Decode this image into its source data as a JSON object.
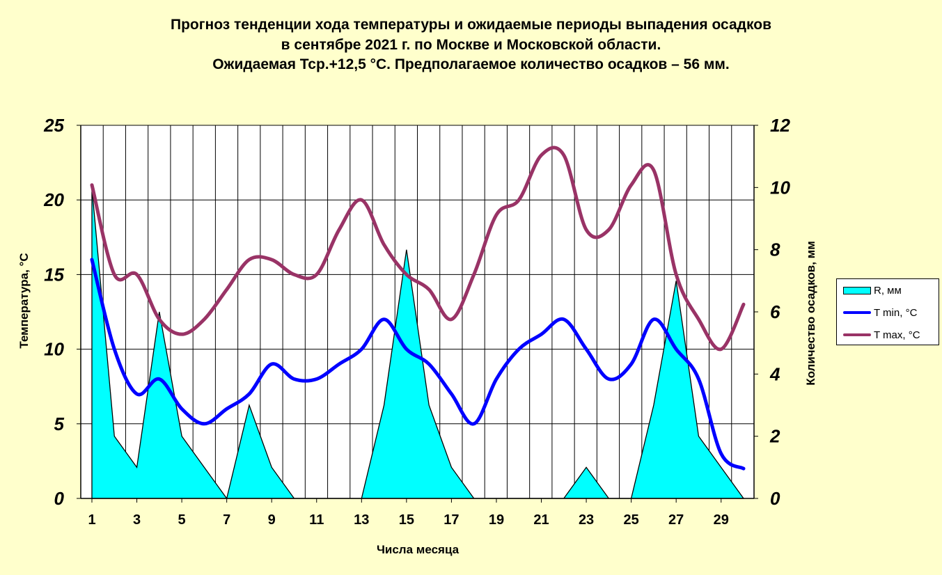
{
  "title_lines": [
    "Прогноз тенденции хода температуры и ожидаемые периоды выпадения осадков",
    "в сентябре 2021 г. по Москве и Московской области.",
    "Ожидаемая Тср.+12,5 °С. Предполагаемое количество осадков – 56 мм."
  ],
  "chart_data": {
    "type": "line",
    "x": [
      1,
      2,
      3,
      4,
      5,
      6,
      7,
      8,
      9,
      10,
      11,
      12,
      13,
      14,
      15,
      16,
      17,
      18,
      19,
      20,
      21,
      22,
      23,
      24,
      25,
      26,
      27,
      28,
      29,
      30
    ],
    "xlabel": "Числа месяца",
    "ylabel": "Температура, °С",
    "y2label": "Количество осадков, мм",
    "ylim": [
      0,
      25
    ],
    "y2lim": [
      0,
      12
    ],
    "yticks": [
      "0",
      "5",
      "10",
      "15",
      "20",
      "25"
    ],
    "y2ticks": [
      "0",
      "2",
      "4",
      "6",
      "8",
      "10",
      "12"
    ],
    "xticks": [
      "1",
      "3",
      "5",
      "7",
      "9",
      "11",
      "13",
      "15",
      "17",
      "19",
      "21",
      "23",
      "25",
      "27",
      "29"
    ],
    "grid": true,
    "legend_position": "right",
    "series": [
      {
        "name": "R, мм",
        "kind": "area",
        "axis": "right",
        "color": "#00ffff",
        "values": [
          10,
          2,
          1,
          6,
          2,
          1,
          0,
          3,
          1,
          0,
          0,
          0,
          0,
          3,
          8,
          3,
          1,
          0,
          0,
          0,
          0,
          0,
          1,
          0,
          0,
          3,
          7,
          2,
          1,
          0
        ]
      },
      {
        "name": "T min, °С",
        "kind": "line",
        "axis": "left",
        "color": "#0000ff",
        "values": [
          16,
          10,
          7,
          8,
          6,
          5,
          6,
          7,
          9,
          8,
          8,
          9,
          10,
          12,
          10,
          9,
          7,
          5,
          8,
          10,
          11,
          12,
          10,
          8,
          9,
          12,
          10,
          8,
          3,
          2
        ]
      },
      {
        "name": "T max, °С",
        "kind": "line",
        "axis": "left",
        "color": "#993366",
        "values": [
          21,
          15,
          15,
          12,
          11,
          12,
          14,
          16,
          16,
          15,
          15,
          18,
          20,
          17,
          15,
          14,
          12,
          15,
          19,
          20,
          23,
          23,
          18,
          18,
          21,
          22,
          15,
          12,
          10,
          13
        ]
      }
    ]
  }
}
